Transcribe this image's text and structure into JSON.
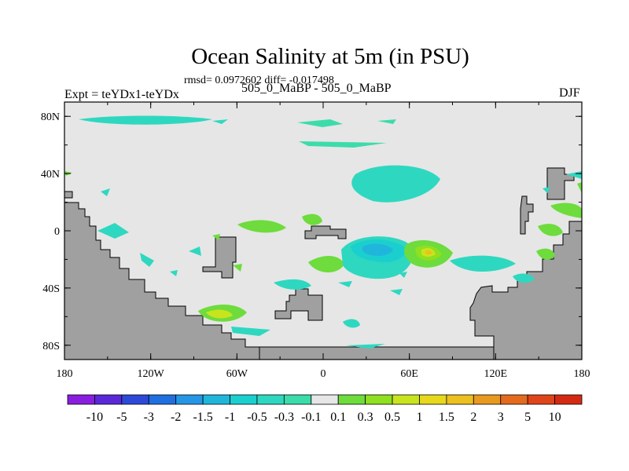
{
  "chart_data": {
    "type": "heatmap",
    "title": "Ocean Salinity at 5m (in PSU)",
    "subtitle": "rmsd= 0.0972602 diff= -0.017498",
    "left_label": "Expt = teYDx1-teYDx",
    "center_label": "505_0_MaBP - 505_0_MaBP",
    "right_label": "DJF",
    "x_ticks": [
      "180",
      "120W",
      "60W",
      "0",
      "60E",
      "120E",
      "180"
    ],
    "y_ticks": [
      "80N",
      "40N",
      "0",
      "40S",
      "80S"
    ],
    "xlim": [
      -180,
      180
    ],
    "ylim": [
      -90,
      90
    ],
    "colorbar": {
      "labels": [
        "-10",
        "-5",
        "-3",
        "-2",
        "-1.5",
        "-1",
        "-0.5",
        "-0.3",
        "-0.1",
        "0.1",
        "0.3",
        "0.5",
        "1",
        "1.5",
        "2",
        "3",
        "5",
        "10"
      ],
      "colors": [
        "#8a1ee0",
        "#5a28d8",
        "#2c4ad8",
        "#1f6fe0",
        "#2596e6",
        "#20b6dc",
        "#1ccfcf",
        "#2ed8c0",
        "#3cdcaa",
        "#e6e6e6",
        "#6ddc3c",
        "#8ee020",
        "#c8e41e",
        "#e8d81c",
        "#ecc01e",
        "#e89a20",
        "#e46a1e",
        "#e0441a",
        "#d42a14"
      ]
    },
    "colors": {
      "land": "#a0a0a0",
      "ocean": "#e6e6e6"
    }
  }
}
